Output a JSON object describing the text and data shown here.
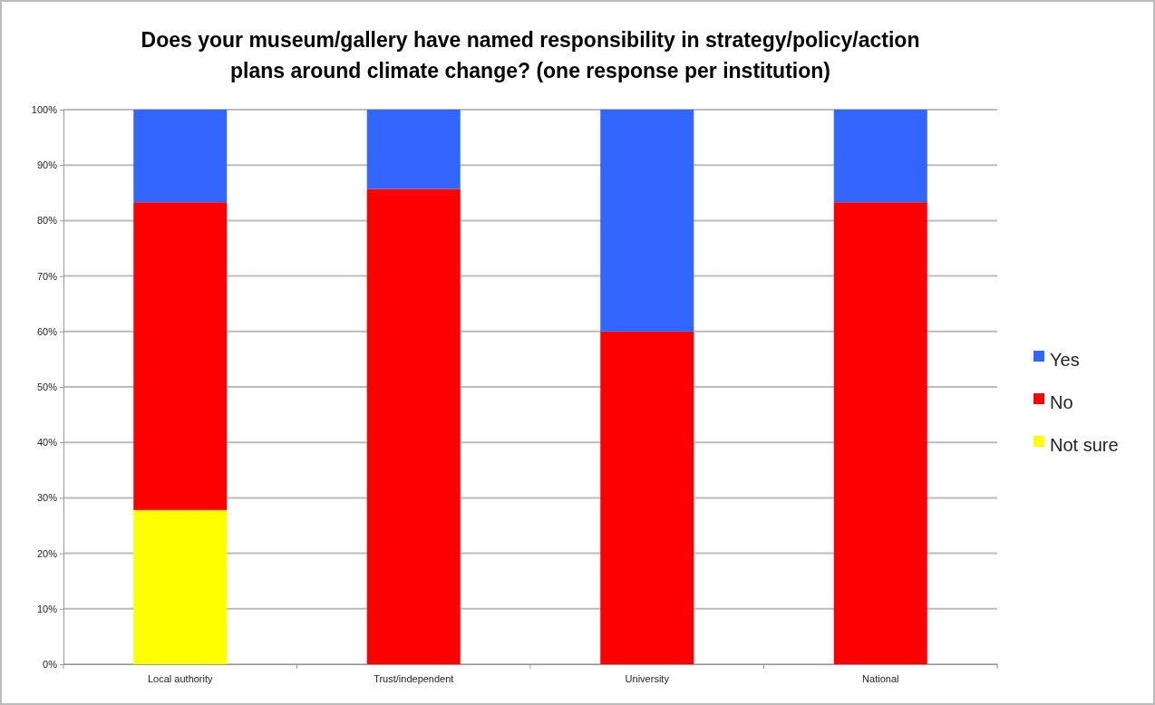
{
  "chart_data": {
    "type": "bar",
    "title": "Does your museum/gallery have named responsibility in strategy/policy/action plans around climate change? (one response per institution)",
    "categories": [
      "Local authority",
      "Trust/independent",
      "University",
      "National"
    ],
    "stacked": true,
    "series": [
      {
        "name": "Not sure",
        "color": "#ffff00",
        "values": [
          27.8,
          0,
          0,
          0
        ]
      },
      {
        "name": "No",
        "color": "#ff0000",
        "values": [
          55.5,
          85.7,
          60,
          83.3
        ]
      },
      {
        "name": "Yes",
        "color": "#3366ff",
        "values": [
          16.7,
          14.3,
          40,
          16.7
        ]
      }
    ],
    "ylim": [
      0,
      100
    ],
    "yticks": [
      {
        "value": 0,
        "label": "0%"
      },
      {
        "value": 10,
        "label": "10%"
      },
      {
        "value": 20,
        "label": "20%"
      },
      {
        "value": 30,
        "label": "30%"
      },
      {
        "value": 40,
        "label": "40%"
      },
      {
        "value": 50,
        "label": "50%"
      },
      {
        "value": 60,
        "label": "60%"
      },
      {
        "value": 70,
        "label": "70%"
      },
      {
        "value": 80,
        "label": "80%"
      },
      {
        "value": 90,
        "label": "90%"
      },
      {
        "value": 100,
        "label": "100%"
      }
    ],
    "grid": "y",
    "legend": "right"
  }
}
